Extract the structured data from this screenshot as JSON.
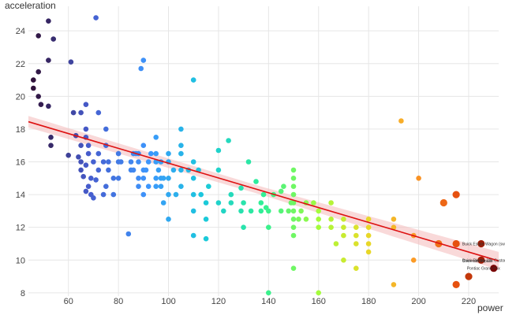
{
  "chart_data": {
    "type": "scatter",
    "title": "",
    "xlabel": "power",
    "ylabel": "acceleration",
    "xlim": [
      44,
      232
    ],
    "ylim": [
      7.8,
      25.5
    ],
    "x_ticks": [
      60,
      80,
      100,
      120,
      140,
      160,
      180,
      200,
      220
    ],
    "y_ticks": [
      8,
      10,
      12,
      14,
      16,
      18,
      20,
      22,
      24
    ],
    "grid": true,
    "color_by": "power",
    "colormap": "turbo",
    "regression": {
      "line_color": "#dd1111",
      "band_color": "#f4b9b9",
      "points": [
        [
          44,
          18.45
        ],
        [
          232,
          9.95
        ]
      ],
      "band_halfwidth": [
        0.35,
        0.25,
        0.55
      ]
    },
    "point_labels": [
      {
        "text": "Buick Estate Wagon (sw)",
        "x": 225,
        "y": 11.0
      },
      {
        "text": "Buick Electra 225 Custom",
        "x": 225,
        "y": 10.0
      },
      {
        "text": "Chevrolet Impala",
        "x": 225,
        "y": 10.0
      },
      {
        "text": "Pontiac Grand Prix",
        "x": 225,
        "y": 9.5
      }
    ],
    "points": [
      [
        46,
        21.0
      ],
      [
        46,
        20.5
      ],
      [
        48,
        23.7
      ],
      [
        48,
        21.5
      ],
      [
        48,
        20.0
      ],
      [
        49,
        19.5
      ],
      [
        52,
        24.6
      ],
      [
        52,
        22.2
      ],
      [
        52,
        19.4
      ],
      [
        53,
        17.5
      ],
      [
        53,
        17.0
      ],
      [
        54,
        23.5
      ],
      [
        60,
        16.4
      ],
      [
        61,
        22.1
      ],
      [
        62,
        19.0
      ],
      [
        63,
        17.6
      ],
      [
        64,
        16.3
      ],
      [
        65,
        15.5
      ],
      [
        65,
        16.0
      ],
      [
        65,
        17.0
      ],
      [
        65,
        19.0
      ],
      [
        66,
        15.1
      ],
      [
        67,
        14.2
      ],
      [
        67,
        15.8
      ],
      [
        67,
        17.5
      ],
      [
        67,
        18.0
      ],
      [
        67,
        19.5
      ],
      [
        68,
        14.5
      ],
      [
        68,
        16.5
      ],
      [
        68,
        17.0
      ],
      [
        69,
        14.0
      ],
      [
        69,
        15.0
      ],
      [
        70,
        16.0
      ],
      [
        70,
        13.8
      ],
      [
        71,
        24.8
      ],
      [
        71,
        14.9
      ],
      [
        72,
        15.5
      ],
      [
        72,
        16.5
      ],
      [
        72,
        19.0
      ],
      [
        74,
        14.0
      ],
      [
        74,
        16.0
      ],
      [
        75,
        17.0
      ],
      [
        75,
        18.0
      ],
      [
        75,
        14.5
      ],
      [
        76,
        15.5
      ],
      [
        76,
        16.0
      ],
      [
        78,
        14.0
      ],
      [
        78,
        15.0
      ],
      [
        80,
        16.5
      ],
      [
        80,
        15.0
      ],
      [
        80,
        16.0
      ],
      [
        81,
        16.0
      ],
      [
        84,
        11.6
      ],
      [
        85,
        15.5
      ],
      [
        85,
        16.0
      ],
      [
        86,
        16.5
      ],
      [
        86,
        15.5
      ],
      [
        87,
        16.5
      ],
      [
        88,
        16.0
      ],
      [
        88,
        15.0
      ],
      [
        88,
        14.5
      ],
      [
        88,
        16.5
      ],
      [
        89,
        21.7
      ],
      [
        90,
        22.2
      ],
      [
        90,
        14.0
      ],
      [
        90,
        15.0
      ],
      [
        90,
        15.5
      ],
      [
        90,
        17.0
      ],
      [
        91,
        15.5
      ],
      [
        92,
        14.5
      ],
      [
        92,
        16.0
      ],
      [
        93,
        16.5
      ],
      [
        95,
        14.5
      ],
      [
        95,
        15.0
      ],
      [
        95,
        16.0
      ],
      [
        95,
        16.5
      ],
      [
        95,
        17.5
      ],
      [
        96,
        15.5
      ],
      [
        97,
        14.5
      ],
      [
        97,
        15.0
      ],
      [
        97,
        16.0
      ],
      [
        98,
        13.5
      ],
      [
        98,
        15.0
      ],
      [
        100,
        14.0
      ],
      [
        100,
        15.0
      ],
      [
        100,
        16.0
      ],
      [
        100,
        16.5
      ],
      [
        100,
        12.5
      ],
      [
        102,
        15.5
      ],
      [
        103,
        14.0
      ],
      [
        105,
        14.5
      ],
      [
        105,
        15.5
      ],
      [
        105,
        16.5
      ],
      [
        105,
        17.0
      ],
      [
        105,
        18.0
      ],
      [
        108,
        15.5
      ],
      [
        110,
        21.0
      ],
      [
        110,
        15.0
      ],
      [
        110,
        14.0
      ],
      [
        110,
        16.0
      ],
      [
        110,
        13.0
      ],
      [
        110,
        11.5
      ],
      [
        112,
        15.5
      ],
      [
        113,
        14.0
      ],
      [
        115,
        13.5
      ],
      [
        115,
        12.5
      ],
      [
        115,
        11.3
      ],
      [
        116,
        14.5
      ],
      [
        120,
        15.5
      ],
      [
        120,
        13.5
      ],
      [
        120,
        16.7
      ],
      [
        122,
        13.0
      ],
      [
        124,
        17.3
      ],
      [
        125,
        14.0
      ],
      [
        125,
        13.5
      ],
      [
        129,
        14.4
      ],
      [
        129,
        13.0
      ],
      [
        130,
        12.0
      ],
      [
        130,
        13.5
      ],
      [
        132,
        16.0
      ],
      [
        133,
        13.0
      ],
      [
        135,
        14.8
      ],
      [
        137,
        13.0
      ],
      [
        137,
        13.5
      ],
      [
        138,
        14.0
      ],
      [
        139,
        13.2
      ],
      [
        140,
        8.0
      ],
      [
        140,
        12.0
      ],
      [
        140,
        13.0
      ],
      [
        142,
        14.0
      ],
      [
        145,
        14.2
      ],
      [
        145,
        13.0
      ],
      [
        146,
        14.5
      ],
      [
        148,
        13.0
      ],
      [
        149,
        13.5
      ],
      [
        150,
        11.5
      ],
      [
        150,
        12.0
      ],
      [
        150,
        12.5
      ],
      [
        150,
        13.0
      ],
      [
        150,
        13.5
      ],
      [
        150,
        14.0
      ],
      [
        150,
        14.5
      ],
      [
        150,
        15.0
      ],
      [
        150,
        15.5
      ],
      [
        150,
        9.5
      ],
      [
        152,
        12.5
      ],
      [
        153,
        13.0
      ],
      [
        155,
        12.5
      ],
      [
        155,
        13.5
      ],
      [
        158,
        13.5
      ],
      [
        160,
        8.0
      ],
      [
        160,
        12.0
      ],
      [
        160,
        12.5
      ],
      [
        160,
        13.0
      ],
      [
        165,
        12.0
      ],
      [
        165,
        12.5
      ],
      [
        165,
        13.5
      ],
      [
        167,
        11.0
      ],
      [
        170,
        10.0
      ],
      [
        170,
        12.0
      ],
      [
        170,
        12.5
      ],
      [
        170,
        11.5
      ],
      [
        175,
        11.0
      ],
      [
        175,
        12.0
      ],
      [
        175,
        11.5
      ],
      [
        175,
        9.5
      ],
      [
        180,
        11.0
      ],
      [
        180,
        11.5
      ],
      [
        180,
        12.0
      ],
      [
        180,
        12.5
      ],
      [
        180,
        10.5
      ],
      [
        190,
        8.5
      ],
      [
        190,
        12.0
      ],
      [
        190,
        12.5
      ],
      [
        193,
        18.5
      ],
      [
        198,
        10.0
      ],
      [
        198,
        11.5
      ],
      [
        200,
        15.0
      ],
      [
        208,
        11.0
      ],
      [
        210,
        13.5
      ],
      [
        215,
        8.5
      ],
      [
        215,
        11.0
      ],
      [
        215,
        14.0
      ],
      [
        220,
        9.0
      ],
      [
        225,
        11.0
      ],
      [
        225,
        10.0
      ],
      [
        230,
        9.5
      ]
    ]
  }
}
